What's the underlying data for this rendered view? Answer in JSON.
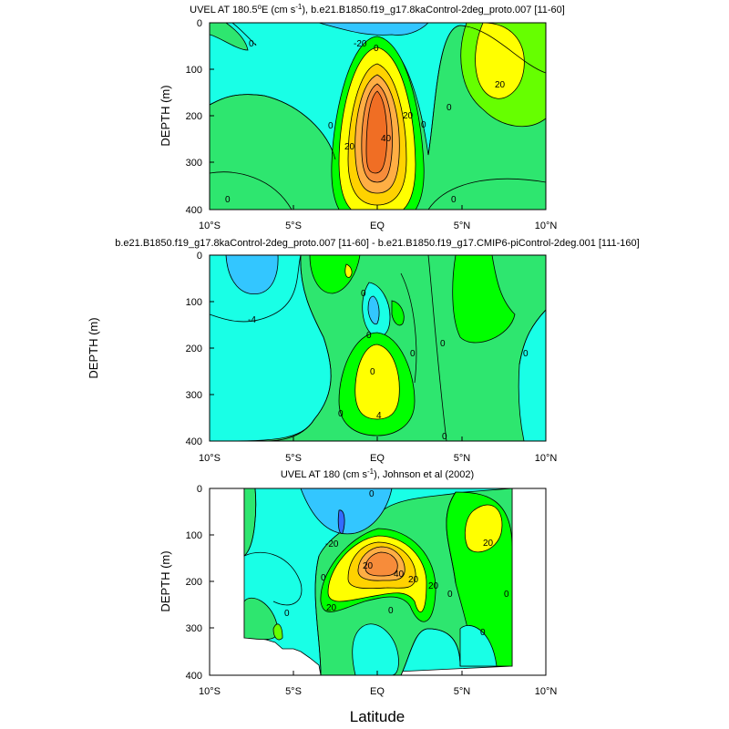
{
  "chart_data": [
    {
      "type": "contour",
      "title_main": "UVEL AT 180.5",
      "title_degree": "o",
      "title_rest1": "E (cm s",
      "title_sup": "-1",
      "title_rest2": "), b.e21.B1850.f19_g17.8kaControl-2deg_proto.007 [11-60]",
      "ylabel": "DEPTH (m)",
      "xlim": [
        -10,
        10
      ],
      "ylim": [
        400,
        0
      ],
      "x_ticks": [
        "10°S",
        "5°S",
        "EQ",
        "5°N",
        "10°N"
      ],
      "y_ticks": [
        "0",
        "100",
        "200",
        "300",
        "400"
      ],
      "contour_labels": [
        "-20",
        "0",
        "20",
        "40",
        "20",
        "20",
        "0",
        "0",
        "0",
        "0",
        "0",
        "0"
      ],
      "features": [
        {
          "name": "equatorial undercurrent core",
          "lat": 0,
          "depth": 180,
          "max_cm_s": 70
        },
        {
          "name": "north equatorial countercurrent",
          "lat": 7,
          "depth": 70,
          "max_cm_s": 30
        }
      ]
    },
    {
      "type": "contour",
      "title": "b.e21.B1850.f19_g17.8kaControl-2deg_proto.007 [11-60] - b.e21.B1850.f19_g17.CMIP6-piControl-2deg.001 [111-160]",
      "ylabel": "DEPTH (m)",
      "xlim": [
        -10,
        10
      ],
      "ylim": [
        400,
        0
      ],
      "x_ticks": [
        "10°S",
        "5°S",
        "EQ",
        "5°N",
        "10°N"
      ],
      "y_ticks": [
        "0",
        "100",
        "200",
        "300",
        "400"
      ],
      "contour_labels": [
        "-4",
        "0",
        "0",
        "0",
        "0",
        "0",
        "4",
        "0",
        "0",
        "0"
      ],
      "features": [
        {
          "name": "positive difference core",
          "lat": 0,
          "depth": 280,
          "max_cm_s": 6
        },
        {
          "name": "negative difference",
          "lat": -7,
          "depth": 50,
          "min_cm_s": -8
        }
      ]
    },
    {
      "type": "contour",
      "title_main": "UVEL AT 180 (cm s",
      "title_sup": "-1",
      "title_rest": "), Johnson et al (2002)",
      "xlabel": "Latitude",
      "ylabel": "DEPTH (m)",
      "xlim": [
        -10,
        10
      ],
      "ylim": [
        400,
        0
      ],
      "x_ticks": [
        "10°S",
        "5°S",
        "EQ",
        "5°N",
        "10°N"
      ],
      "y_ticks": [
        "0",
        "100",
        "200",
        "300",
        "400"
      ],
      "contour_labels": [
        "-20",
        "20",
        "40",
        "20",
        "20",
        "20",
        "20",
        "0",
        "0",
        "0",
        "0",
        "0",
        "0",
        "0"
      ],
      "features": [
        {
          "name": "equatorial undercurrent core",
          "lat": 0.5,
          "depth": 170,
          "max_cm_s": 70
        },
        {
          "name": "north equatorial countercurrent",
          "lat": 6.5,
          "depth": 70,
          "max_cm_s": 30
        }
      ]
    }
  ]
}
